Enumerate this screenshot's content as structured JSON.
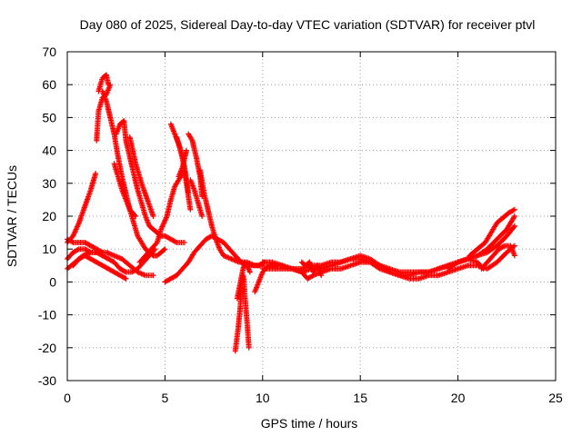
{
  "chart_data": {
    "type": "scatter",
    "title": "Day 080 of 2025, Sidereal Day-to-day VTEC variation (SDTVAR) for receiver ptvl",
    "xlabel": "GPS time / hours",
    "ylabel": "SDTVAR / TECUs",
    "xlim": [
      0,
      25
    ],
    "ylim": [
      -30,
      70
    ],
    "xticks": [
      0,
      5,
      10,
      15,
      20,
      25
    ],
    "yticks": [
      -30,
      -20,
      -10,
      0,
      10,
      20,
      30,
      40,
      50,
      60,
      70
    ],
    "grid": true,
    "marker": "+",
    "color": "#ff0000",
    "series": [
      {
        "name": "s1",
        "x": [
          0.0,
          0.3,
          0.6,
          0.9,
          1.2,
          1.45
        ],
        "y": [
          12,
          14,
          18,
          23,
          28,
          33
        ]
      },
      {
        "name": "s2",
        "x": [
          1.5,
          1.6,
          1.8,
          2.0,
          2.2
        ],
        "y": [
          43,
          52,
          56,
          57,
          60
        ]
      },
      {
        "name": "s3",
        "x": [
          1.6,
          1.8,
          2.0,
          2.1
        ],
        "y": [
          58,
          62,
          63,
          60
        ]
      },
      {
        "name": "s4",
        "x": [
          1.8,
          2.0,
          2.2,
          2.4,
          2.6,
          2.8,
          3.0,
          3.2,
          3.4,
          3.6,
          3.8,
          4.0,
          4.2,
          4.4,
          4.6,
          4.8,
          5.0
        ],
        "y": [
          58,
          55,
          50,
          45,
          38,
          32,
          27,
          22,
          18,
          14,
          12,
          10,
          9,
          8,
          8,
          9,
          10
        ]
      },
      {
        "name": "s5",
        "x": [
          2.5,
          2.7,
          2.9,
          3.0,
          3.2,
          3.4,
          3.6,
          3.8,
          4.0,
          4.2,
          4.4,
          4.6,
          4.8,
          5.0,
          5.3,
          5.6,
          6.0
        ],
        "y": [
          45,
          48,
          49,
          43,
          38,
          33,
          28,
          24,
          20,
          17,
          16,
          15,
          14,
          14,
          13,
          12,
          12
        ]
      },
      {
        "name": "s6",
        "x": [
          2.4,
          2.6,
          2.8,
          3.0,
          3.2,
          3.5
        ],
        "y": [
          36,
          32,
          28,
          25,
          22,
          20
        ]
      },
      {
        "name": "s7",
        "x": [
          3.2,
          3.5,
          3.8,
          4.1,
          4.4
        ],
        "y": [
          44,
          36,
          30,
          25,
          20
        ]
      },
      {
        "name": "s8",
        "x": [
          3.7,
          4.0,
          4.3,
          4.6,
          4.8,
          5.1,
          5.3,
          5.5,
          5.7,
          5.9
        ],
        "y": [
          6,
          8,
          10,
          12,
          16,
          20,
          25,
          29,
          31,
          33
        ]
      },
      {
        "name": "s9",
        "x": [
          5.3,
          5.5,
          5.7,
          5.8,
          5.9,
          6.0,
          6.1,
          6.2,
          6.3
        ],
        "y": [
          48,
          45,
          42,
          40,
          38,
          34,
          30,
          26,
          22
        ]
      },
      {
        "name": "s10",
        "x": [
          5.6,
          5.8,
          6.0,
          6.1,
          6.2
        ],
        "y": [
          44,
          40,
          35,
          31,
          27
        ]
      },
      {
        "name": "s11",
        "x": [
          5.7,
          5.9,
          6.1
        ],
        "y": [
          32,
          35,
          40
        ]
      },
      {
        "name": "s12",
        "x": [
          6.2,
          6.4,
          6.6,
          6.8,
          6.9
        ],
        "y": [
          45,
          43,
          38,
          32,
          26
        ]
      },
      {
        "name": "s13",
        "x": [
          6.3,
          6.5,
          6.7,
          6.9
        ],
        "y": [
          31,
          28,
          24,
          20
        ]
      },
      {
        "name": "s14",
        "x": [
          6.8,
          7.0,
          7.2,
          7.4,
          7.6,
          7.8,
          8.0,
          8.4,
          8.8,
          9.2,
          9.6,
          10.0
        ],
        "y": [
          34,
          27,
          22,
          17,
          13,
          10,
          8,
          7,
          6,
          6,
          5,
          5
        ]
      },
      {
        "name": "s15",
        "x": [
          5.0,
          5.3,
          5.6,
          5.9,
          6.2,
          6.5,
          6.8,
          7.1,
          7.4,
          7.7,
          8.0,
          8.3,
          8.6,
          8.9,
          9.2,
          9.5,
          9.8,
          10.1
        ],
        "y": [
          0,
          1,
          2,
          4,
          6,
          9,
          11,
          13,
          14,
          13,
          12,
          10,
          8,
          6,
          5,
          5,
          5,
          6
        ]
      },
      {
        "name": "s16",
        "x": [
          0.0,
          0.3,
          0.6,
          0.9,
          1.2,
          1.5,
          1.8,
          2.1,
          2.4,
          2.7,
          3.0,
          3.3,
          3.6,
          3.9,
          4.2,
          4.5
        ],
        "y": [
          7,
          9,
          10,
          10,
          9,
          9,
          8,
          7,
          6,
          4,
          3,
          3,
          4,
          6,
          8,
          10
        ]
      },
      {
        "name": "s17",
        "x": [
          0.0,
          0.4,
          0.8,
          1.2,
          1.6,
          2.0,
          2.4,
          2.8,
          3.2,
          3.6,
          4.0,
          4.4
        ],
        "y": [
          4,
          6,
          8,
          9,
          9,
          9,
          8,
          7,
          5,
          3,
          2,
          2
        ]
      },
      {
        "name": "s18",
        "x": [
          0.3,
          0.6,
          0.9,
          1.2,
          1.5,
          1.8,
          2.1,
          2.4,
          2.7,
          3.0
        ],
        "y": [
          5,
          7,
          8,
          7,
          6,
          5,
          4,
          3,
          2,
          1
        ]
      },
      {
        "name": "s19",
        "x": [
          0.0,
          0.3,
          0.6,
          0.9,
          1.2,
          1.5,
          1.8
        ],
        "y": [
          13,
          12,
          12,
          12,
          11,
          10,
          9
        ]
      },
      {
        "name": "s20",
        "x": [
          8.6,
          8.75,
          8.85,
          8.9,
          8.95,
          9.0,
          9.05,
          9.1,
          9.2,
          9.3
        ],
        "y": [
          -21,
          -14,
          -8,
          -3,
          0,
          2,
          0,
          -5,
          -12,
          -20
        ]
      },
      {
        "name": "s21",
        "x": [
          8.7,
          8.8,
          8.9,
          9.0,
          9.1,
          9.2,
          9.35
        ],
        "y": [
          -5,
          -2,
          1,
          4,
          6,
          5,
          3
        ]
      },
      {
        "name": "s22",
        "x": [
          9.6,
          9.8,
          10.0,
          10.3,
          10.6,
          11.0,
          11.5,
          12.0,
          12.5,
          13.0,
          13.5,
          14.0,
          14.5,
          15.0,
          15.5,
          16.0,
          16.5,
          17.0,
          17.5,
          18.0,
          18.5,
          19.0,
          19.5,
          20.0,
          20.5,
          21.0,
          21.5,
          22.0,
          22.5,
          22.9
        ],
        "y": [
          -3,
          0,
          3,
          5,
          5,
          5,
          4,
          4,
          5,
          5,
          6,
          6,
          7,
          7,
          6,
          5,
          4,
          3,
          3,
          3,
          3,
          4,
          5,
          6,
          7,
          8,
          10,
          13,
          16,
          20
        ]
      },
      {
        "name": "s23",
        "x": [
          10.0,
          10.5,
          11.0,
          11.5,
          12.0,
          12.5,
          13.0,
          13.5,
          14.0,
          14.5,
          15.0,
          15.5,
          16.0,
          16.5,
          17.0,
          17.5,
          18.0,
          18.5,
          19.0,
          19.5,
          20.0,
          20.5,
          21.0,
          21.5,
          22.0,
          22.5,
          22.9
        ],
        "y": [
          6,
          6,
          5,
          4,
          3,
          4,
          4,
          5,
          6,
          7,
          8,
          7,
          5,
          3,
          2,
          2,
          3,
          3,
          4,
          5,
          6,
          7,
          8,
          9,
          11,
          14,
          17
        ]
      },
      {
        "name": "s24",
        "x": [
          10.0,
          10.5,
          11.0,
          11.5,
          12.0,
          12.3,
          12.6,
          13.0,
          13.5,
          14.0,
          14.5,
          15.0,
          15.5,
          16.0,
          16.5,
          17.0,
          17.5,
          18.0,
          18.5,
          19.0,
          19.5,
          20.0,
          20.5,
          21.0,
          21.5,
          22.0,
          22.5,
          22.9
        ],
        "y": [
          4,
          4,
          4,
          4,
          3,
          1,
          2,
          3,
          4,
          4,
          5,
          6,
          6,
          4,
          3,
          2,
          1,
          1,
          2,
          2,
          3,
          4,
          5,
          5,
          4,
          6,
          9,
          11
        ]
      },
      {
        "name": "s25",
        "x": [
          12.0,
          12.2,
          12.4,
          12.6,
          12.8,
          13.0
        ],
        "y": [
          6,
          5,
          6,
          3,
          5,
          2
        ]
      },
      {
        "name": "s26",
        "x": [
          20.6,
          20.8,
          21.0,
          21.2,
          21.4,
          21.6,
          21.8,
          22.0,
          22.2,
          22.4,
          22.6,
          22.9
        ],
        "y": [
          8,
          9,
          10,
          11,
          12,
          14,
          16,
          18,
          19,
          20,
          21,
          22
        ]
      },
      {
        "name": "s27",
        "x": [
          21.2,
          21.5,
          21.8,
          22.1,
          22.4,
          22.7,
          22.9
        ],
        "y": [
          4,
          6,
          8,
          10,
          11,
          11,
          8
        ]
      },
      {
        "name": "s28",
        "x": [
          19.5,
          20.0,
          20.5,
          21.0,
          21.3
        ],
        "y": [
          4,
          6,
          7,
          6,
          4
        ]
      }
    ]
  }
}
